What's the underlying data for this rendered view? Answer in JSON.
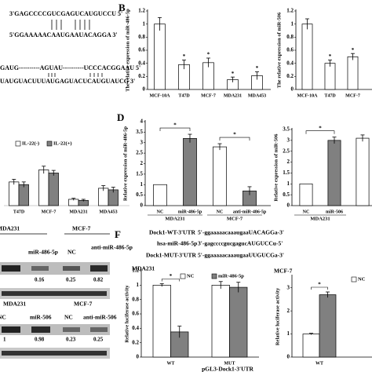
{
  "panel_labels": {
    "b": "B",
    "d": "D",
    "f": "F"
  },
  "panel_a": {
    "seq1_mirna": "3'GAGCCCCGUCGAGUCAUGUCCU 5'",
    "seq1_target": "5'GGAAAAACAAUGAAUACAGGA 3'",
    "seq2_mirna": "GAUG----------AGUAU----------UCCCACGGAAU 5'",
    "seq2_target": "UAUGUACUUUAUGAGUACUCAUGUAUCG 3'"
  },
  "blot": {
    "set1_cells": [
      "MDA231",
      "MCF-7"
    ],
    "set1_lanes": [
      "miR-486-5p",
      "NC",
      "anti-miR-486-5p"
    ],
    "set1_values": [
      0.16,
      0.25,
      0.82
    ],
    "set2_cells": [
      "MDA231",
      "MCF-7"
    ],
    "set2_lanes": [
      "NC",
      "miR-506",
      "NC",
      "anti-miR-506"
    ],
    "set2_values": [
      1,
      0.98,
      0.23,
      0.25
    ]
  },
  "panel_f": {
    "rows": [
      [
        "Dock1-WT-3'UTR",
        "5'-ggaaaaacaaaugaaUACAGGa-3'"
      ],
      [
        "hsa-miR-486-5p",
        "3'-gagccccgucgagucAUGUCCu-5'"
      ],
      [
        "Dock1-MUT-3'UTR",
        "5'-ggaaaaacaaaugaaUUGUCGa-3'"
      ]
    ]
  },
  "chart_data": [
    {
      "type": "bar",
      "ylabel": "The relative expression of miR-486-5p",
      "categories": [
        "MCF-10A",
        "T47D",
        "MCF-7",
        "MDA231",
        "MDA453"
      ],
      "values": [
        1,
        0.38,
        0.41,
        0.15,
        0.21
      ],
      "errors": [
        0.1,
        0.07,
        0.07,
        0.04,
        0.06
      ],
      "annotations": [
        null,
        "*",
        "*",
        "*",
        "*"
      ],
      "colors": [
        "#ffffff",
        "#ffffff",
        "#ffffff",
        "#ffffff",
        "#ffffff"
      ],
      "ylim": [
        0,
        1.2
      ],
      "yticks": [
        0,
        0.2,
        0.4,
        0.6,
        0.8,
        1,
        1.2
      ]
    },
    {
      "type": "bar",
      "ylabel": "The relative expression of miR-506",
      "categories": [
        "MCF-10A",
        "T47D",
        "MCF-7"
      ],
      "values": [
        1,
        0.4,
        0.5
      ],
      "errors": [
        0.08,
        0.05,
        0.05
      ],
      "annotations": [
        null,
        "*",
        "*"
      ],
      "colors": [
        "#ffffff",
        "#ffffff",
        "#ffffff"
      ],
      "ylim": [
        0,
        1.2
      ],
      "yticks": [
        0,
        0.2,
        0.4,
        0.6,
        0.8,
        1,
        1.2
      ]
    },
    {
      "type": "bar",
      "categories": [
        "T47D",
        "MCF-7",
        "MDA231",
        "MDA453"
      ],
      "series": [
        {
          "name": "IL-22(-)",
          "color": "#ffffff",
          "values": [
            0.45,
            0.68,
            0.12,
            0.33
          ],
          "errors": [
            0.05,
            0.07,
            0.02,
            0.05
          ]
        },
        {
          "name": "IL-22(+)",
          "color": "#808080",
          "values": [
            0.4,
            0.62,
            0.1,
            0.3
          ],
          "errors": [
            0.05,
            0.05,
            0.02,
            0.05
          ]
        }
      ],
      "ylim": [
        0,
        1
      ]
    },
    {
      "type": "bar",
      "ylabel": "Relative expression of miR-486-5p",
      "categories": [
        "NC",
        "miR-486-5p",
        "NC",
        "anti-miR-486-5p"
      ],
      "values": [
        1,
        3.2,
        2.8,
        0.7
      ],
      "errors": [
        null,
        0.2,
        0.15,
        0.2
      ],
      "colors": [
        "#ffffff",
        "#808080",
        "#ffffff",
        "#808080"
      ],
      "groups": [
        "MDA231",
        "MCF-7"
      ],
      "significance": [
        "*",
        "*"
      ],
      "ylim": [
        0,
        4
      ],
      "yticks": [
        0,
        0.5,
        1,
        1.5,
        2,
        2.5,
        3,
        3.5,
        4
      ]
    },
    {
      "type": "bar",
      "ylabel": "Relative expression of miR-506",
      "categories": [
        "NC",
        "miR-506",
        null
      ],
      "values": [
        1,
        3.0,
        3.1
      ],
      "errors": [
        null,
        0.15,
        0.15
      ],
      "colors": [
        "#ffffff",
        "#808080",
        "#ffffff"
      ],
      "groups": [
        "MDA231"
      ],
      "significance": [
        "*"
      ],
      "ylim": [
        0,
        3.5
      ],
      "yticks": [
        0,
        0.5,
        1,
        1.5,
        2,
        2.5,
        3,
        3.5
      ]
    },
    {
      "type": "bar",
      "title": "MDA231",
      "ylabel": "Relative luciferase activity",
      "xlabel": "pGL3-Dock1-3'UTR",
      "categories": [
        "WT",
        "MUT"
      ],
      "series": [
        {
          "name": "NC",
          "color": "#ffffff",
          "values": [
            1,
            1
          ],
          "errors": [
            0.02,
            0.05
          ]
        },
        {
          "name": "miR-486-5p",
          "color": "#808080",
          "values": [
            0.35,
            0.97
          ],
          "errors": [
            0.08,
            0.07
          ]
        }
      ],
      "significance": [
        "*",
        null
      ],
      "ylim": [
        0,
        1.2
      ],
      "yticks": [
        0,
        0.2,
        0.4,
        0.6,
        0.8,
        1,
        1.2
      ]
    },
    {
      "type": "bar",
      "title": "MCF-7",
      "ylabel": "Relative luciferase activity",
      "categories": [
        "WT"
      ],
      "series": [
        {
          "name": "NC",
          "color": "#ffffff",
          "values": [
            1
          ],
          "errors": [
            0.03
          ]
        },
        {
          "name": null,
          "color": "#808080",
          "values": [
            2.7
          ],
          "errors": [
            0.12
          ]
        }
      ],
      "significance": [
        "*"
      ],
      "ylim": [
        0,
        3.5
      ],
      "yticks": [
        0,
        1,
        2,
        3
      ]
    }
  ]
}
